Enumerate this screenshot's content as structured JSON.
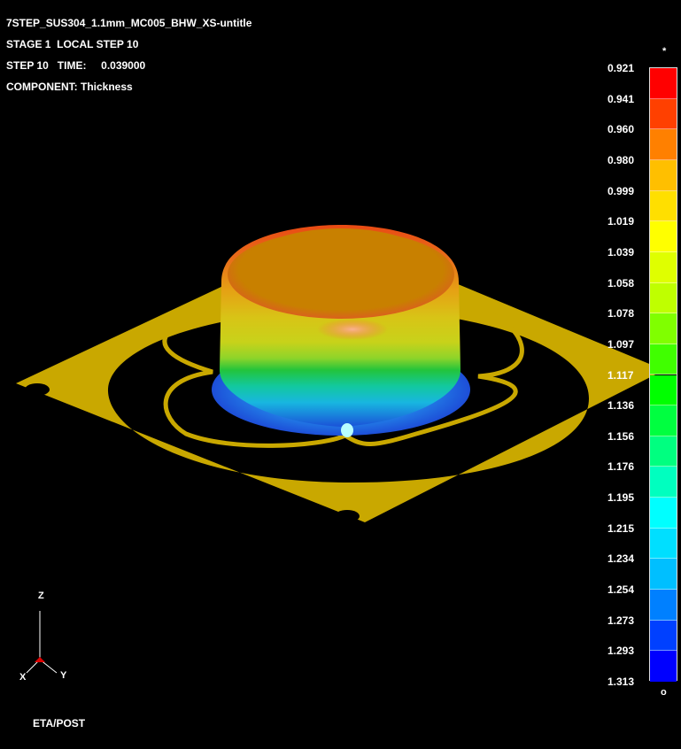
{
  "header": {
    "title": "7STEP_SUS304_1.1mm_MC005_BHW_XS-untitle",
    "stage": "STAGE 1  LOCAL STEP 10",
    "step_time": "STEP 10   TIME:     0.039000",
    "component": "COMPONENT: Thickness"
  },
  "legend": {
    "top_marker": "*",
    "bottom_marker": "o",
    "labels": [
      "0.921",
      "0.941",
      "0.960",
      "0.980",
      "0.999",
      "1.019",
      "1.039",
      "1.058",
      "1.078",
      "1.097",
      "1.117",
      "1.136",
      "1.156",
      "1.176",
      "1.195",
      "1.215",
      "1.234",
      "1.254",
      "1.273",
      "1.293",
      "1.313"
    ],
    "colors": [
      "#ff0000",
      "#ff4000",
      "#ff8000",
      "#ffbf00",
      "#ffdf00",
      "#ffff00",
      "#dfff00",
      "#bfff00",
      "#80ff00",
      "#40ff00",
      "#00ff00",
      "#00ff40",
      "#00ff80",
      "#00ffbf",
      "#00ffff",
      "#00dfff",
      "#00bfff",
      "#0080ff",
      "#0040ff",
      "#0000ff"
    ]
  },
  "axis_triad": {
    "z": "Z",
    "x": "X",
    "y": "Y"
  },
  "footer": {
    "label": "ETA/POST"
  },
  "model_colors": {
    "blank": "#c9a800",
    "cup_top": "#c97e00",
    "rim": "#e8441a"
  }
}
